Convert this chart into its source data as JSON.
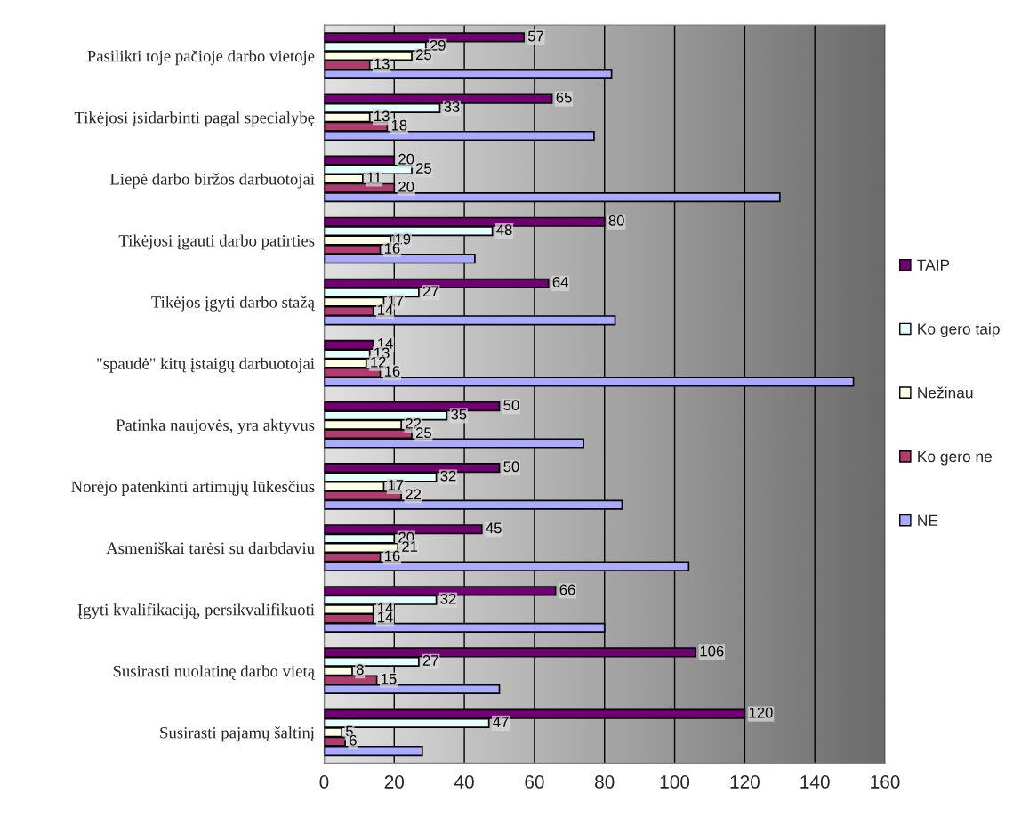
{
  "chart_data": {
    "type": "bar",
    "orientation": "horizontal",
    "categories": [
      "Pasilikti toje pačioje darbo vietoje",
      "Tikėjosi įsidarbinti pagal specialybę",
      "Liepė darbo biržos darbuotojai",
      "Tikėjosi įgauti darbo patirties",
      "Tikėjos įgyti darbo stažą",
      "\"spaudė\" kitų įstaigų darbuotojai",
      "Patinka naujovės, yra aktyvus",
      "Norėjo patenkinti artimųjų lūkesčius",
      "Asmeniškai tarėsi su darbdaviu",
      "Įgyti kvalifikaciją, persikvalifikuoti",
      "Susirasti nuolatinę darbo vietą",
      "Susirasti pajamų šaltinį"
    ],
    "series": [
      {
        "name": "TAIP",
        "color": "#720072",
        "values": [
          57,
          65,
          20,
          80,
          64,
          14,
          50,
          50,
          45,
          66,
          106,
          120
        ],
        "value_labels": [
          "57",
          "65",
          "20",
          "80",
          "64",
          "14",
          "50",
          "50",
          "45",
          "66",
          "106",
          "120"
        ]
      },
      {
        "name": "Ko gero taip",
        "color": "#e6ffff",
        "values": [
          29,
          33,
          25,
          48,
          27,
          13,
          35,
          32,
          20,
          32,
          27,
          47
        ],
        "value_labels": [
          "29",
          "33",
          "25",
          "48",
          "27",
          "13",
          "35",
          "32",
          "20",
          "32",
          "27",
          "47"
        ]
      },
      {
        "name": "Nežinau",
        "color": "#ffffe6",
        "values": [
          25,
          13,
          11,
          19,
          17,
          12,
          22,
          17,
          21,
          14,
          8,
          5
        ],
        "value_labels": [
          "25",
          "13",
          "11",
          "19",
          "17",
          "12",
          "22",
          "17",
          "21",
          "14",
          "8",
          "5"
        ]
      },
      {
        "name": "Ko gero ne",
        "color": "#b03c70",
        "values": [
          13,
          18,
          20,
          16,
          14,
          16,
          25,
          22,
          16,
          14,
          15,
          6
        ],
        "value_labels": [
          "13",
          "18",
          "20",
          "16",
          "14",
          "16",
          "25",
          "22",
          "16",
          "14",
          "15",
          "6"
        ]
      },
      {
        "name": "NE",
        "color": "#aaaaff",
        "values": [
          82,
          77,
          130,
          43,
          83,
          151,
          74,
          85,
          104,
          80,
          50,
          28
        ]
      }
    ],
    "xlim": [
      0,
      160
    ],
    "xticks": [
      0,
      20,
      40,
      60,
      80,
      100,
      120,
      140,
      160
    ],
    "grid": "x",
    "legend": "right"
  }
}
